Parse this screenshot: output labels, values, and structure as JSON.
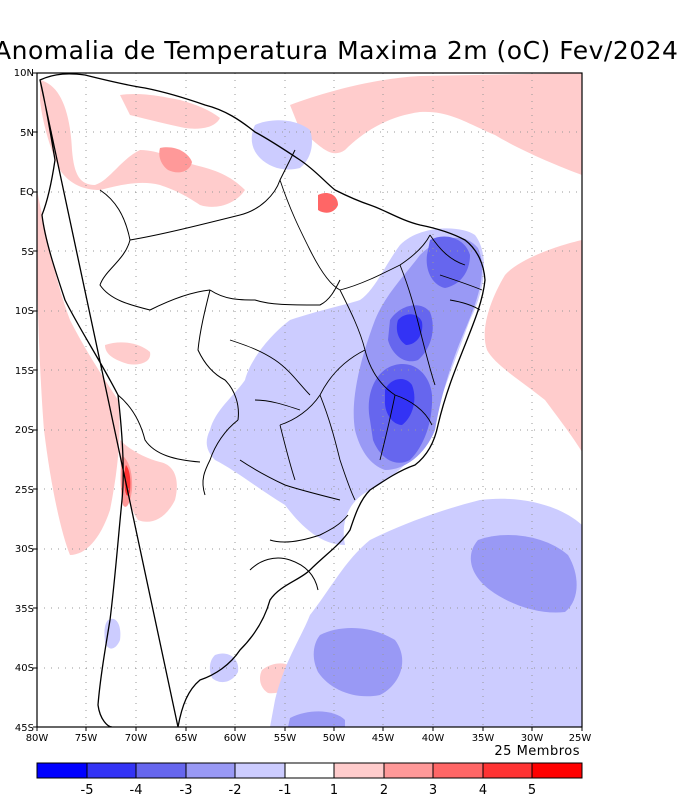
{
  "title": "Anomalia de Temperatura Maxima 2m (oC) Fev/2024",
  "members_note": "25 Membros",
  "lat_ticks": [
    "10N",
    "5N",
    "EQ",
    "5S",
    "10S",
    "15S",
    "20S",
    "25S",
    "30S",
    "35S",
    "40S",
    "45S"
  ],
  "lon_ticks": [
    "80W",
    "75W",
    "70W",
    "65W",
    "60W",
    "55W",
    "50W",
    "45W",
    "40W",
    "35W",
    "30W",
    "25W"
  ],
  "colorbar": {
    "labels": [
      "-5",
      "-4",
      "-3",
      "-2",
      "-1",
      "1",
      "2",
      "3",
      "4",
      "5"
    ],
    "colors": [
      "#0000ff",
      "#3333f5",
      "#6666ee",
      "#9999f5",
      "#ccccff",
      "#ffffff",
      "#ffcccc",
      "#ff9999",
      "#ff6666",
      "#ff3333",
      "#ff0000"
    ]
  }
}
